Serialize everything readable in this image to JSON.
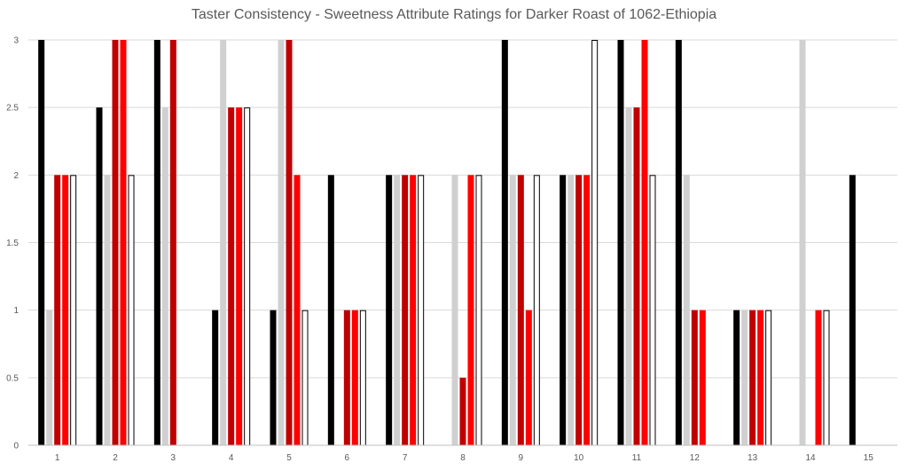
{
  "chart_data": {
    "type": "bar",
    "title": "Taster Consistency - Sweetness Attribute Ratings for Darker Roast of 1062-Ethiopia",
    "xlabel": "",
    "ylabel": "",
    "ylim": [
      0,
      3
    ],
    "yticks": [
      "0",
      "0.5",
      "1",
      "1.5",
      "2",
      "2.5",
      "3"
    ],
    "categories": [
      "1",
      "2",
      "3",
      "4",
      "5",
      "6",
      "7",
      "8",
      "9",
      "10",
      "11",
      "12",
      "13",
      "14",
      "15"
    ],
    "grid": true,
    "legend": "none",
    "series": [
      {
        "color": "#000000",
        "outline": "#000000",
        "values": [
          3,
          2.5,
          3,
          1,
          1,
          2,
          2,
          null,
          3,
          2,
          3,
          3,
          1,
          null,
          2
        ]
      },
      {
        "color": "#d0d0d0",
        "outline": "#d0d0d0",
        "values": [
          1,
          2,
          2.5,
          3,
          3,
          null,
          2,
          2,
          2,
          2,
          2.5,
          2,
          1,
          3,
          null
        ]
      },
      {
        "color": "#c00000",
        "outline": "#c00000",
        "values": [
          2,
          3,
          3,
          2.5,
          3,
          1,
          2,
          0.5,
          2,
          2,
          2.5,
          1,
          1,
          null,
          null
        ]
      },
      {
        "color": "#ff0000",
        "outline": "#ff0000",
        "values": [
          2,
          3,
          null,
          2.5,
          2,
          1,
          2,
          2,
          1,
          2,
          3,
          1,
          1,
          1,
          null
        ]
      },
      {
        "color": "#ffffff",
        "outline": "#000000",
        "values": [
          2,
          2,
          null,
          2.5,
          1,
          1,
          2,
          2,
          2,
          3,
          2,
          null,
          1,
          1,
          null
        ]
      }
    ]
  }
}
